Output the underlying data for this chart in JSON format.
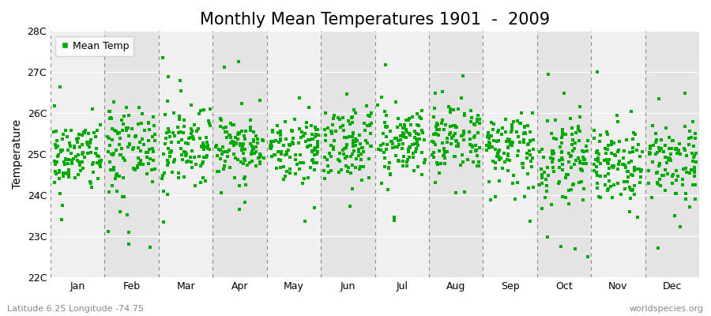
{
  "title": "Monthly Mean Temperatures 1901  -  2009",
  "ylabel": "Temperature",
  "xlabel_bottom_left": "Latitude 6.25 Longitude -74.75",
  "xlabel_bottom_right": "worldspecies.org",
  "legend_label": "Mean Temp",
  "marker_color": "#00AA00",
  "background_color": "#FFFFFF",
  "plot_bg_color": "#F0F0F0",
  "band_colors": [
    "#F0F0F0",
    "#E4E4E4"
  ],
  "dashed_line_color": "#888888",
  "ylim": [
    22,
    28
  ],
  "yticks": [
    22,
    23,
    24,
    25,
    26,
    27,
    28
  ],
  "ytick_labels": [
    "22C",
    "23C",
    "24C",
    "25C",
    "26C",
    "27C",
    "28C"
  ],
  "months": [
    "Jan",
    "Feb",
    "Mar",
    "Apr",
    "May",
    "Jun",
    "Jul",
    "Aug",
    "Sep",
    "Oct",
    "Nov",
    "Dec"
  ],
  "years": 109,
  "seed": 42,
  "mean_temps": [
    24.95,
    25.2,
    25.25,
    25.15,
    25.15,
    25.25,
    25.35,
    25.35,
    25.2,
    24.85,
    24.75,
    24.8
  ],
  "std_temps": [
    0.45,
    0.5,
    0.5,
    0.42,
    0.42,
    0.42,
    0.42,
    0.45,
    0.45,
    0.5,
    0.5,
    0.5
  ],
  "title_fontsize": 15,
  "axis_fontsize": 10,
  "tick_fontsize": 9,
  "marker_size": 5
}
